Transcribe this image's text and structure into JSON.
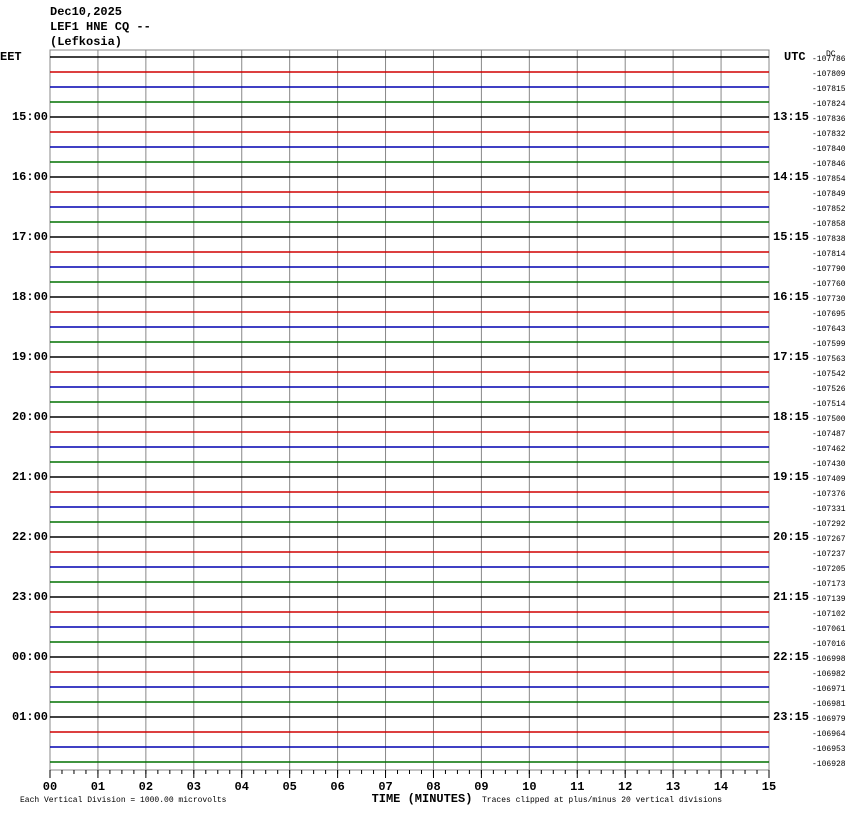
{
  "chart_data": {
    "type": "helicorder",
    "title_lines": [
      "Dec10,2025",
      "LEF1 HNE CQ --",
      "(Lefkosia)"
    ],
    "corner_label": "DC",
    "trace_colors": [
      "#000000",
      "#d00000",
      "#0000b0",
      "#007000"
    ],
    "left_labels": [
      "EET",
      null,
      null,
      null,
      "15:00",
      null,
      null,
      null,
      "16:00",
      null,
      null,
      null,
      "17:00",
      null,
      null,
      null,
      "18:00",
      null,
      null,
      null,
      "19:00",
      null,
      null,
      null,
      "20:00",
      null,
      null,
      null,
      "21:00",
      null,
      null,
      null,
      "22:00",
      null,
      null,
      null,
      "23:00",
      null,
      null,
      null,
      "00:00",
      null,
      null,
      null,
      "01:00",
      null,
      null,
      null
    ],
    "right_labels": [
      "UTC",
      null,
      null,
      null,
      "13:15",
      null,
      null,
      null,
      "14:15",
      null,
      null,
      null,
      "15:15",
      null,
      null,
      null,
      "16:15",
      null,
      null,
      null,
      "17:15",
      null,
      null,
      null,
      "18:15",
      null,
      null,
      null,
      "19:15",
      null,
      null,
      null,
      "20:15",
      null,
      null,
      null,
      "21:15",
      null,
      null,
      null,
      "22:15",
      null,
      null,
      null,
      "23:15",
      null,
      null,
      null
    ],
    "row_values": [
      -107786,
      -107809,
      -107815,
      -107824,
      -107836,
      -107832,
      -107840,
      -107846,
      -107854,
      -107849,
      -107852,
      -107858,
      -107838,
      -107814,
      -107790,
      -107760,
      -107730,
      -107695,
      -107643,
      -107599,
      -107563,
      -107542,
      -107526,
      -107514,
      -107500,
      -107487,
      -107462,
      -107430,
      -107409,
      -107376,
      -107331,
      -107292,
      -107267,
      -107237,
      -107205,
      -107173,
      -107139,
      -107102,
      -107061,
      -107016,
      -106998,
      -106982,
      -106971,
      -106981,
      -106979,
      -106964,
      -106953,
      -106928
    ],
    "xlim": [
      0,
      15
    ],
    "xticks": [
      {
        "value": 0,
        "label": "00"
      },
      {
        "value": 1,
        "label": "01"
      },
      {
        "value": 2,
        "label": "02"
      },
      {
        "value": 3,
        "label": "03"
      },
      {
        "value": 4,
        "label": "04"
      },
      {
        "value": 5,
        "label": "05"
      },
      {
        "value": 6,
        "label": "06"
      },
      {
        "value": 7,
        "label": "07"
      },
      {
        "value": 8,
        "label": "08"
      },
      {
        "value": 9,
        "label": "09"
      },
      {
        "value": 10,
        "label": "10"
      },
      {
        "value": 11,
        "label": "11"
      },
      {
        "value": 12,
        "label": "12"
      },
      {
        "value": 13,
        "label": "13"
      },
      {
        "value": 14,
        "label": "14"
      },
      {
        "value": 15,
        "label": "15"
      }
    ],
    "x_label": "TIME (MINUTES)",
    "scale_note": "Each Vertical Division = 1000.00 microvolts",
    "clip_note": "Traces clipped at plus/minus 20 vertical divisions"
  }
}
